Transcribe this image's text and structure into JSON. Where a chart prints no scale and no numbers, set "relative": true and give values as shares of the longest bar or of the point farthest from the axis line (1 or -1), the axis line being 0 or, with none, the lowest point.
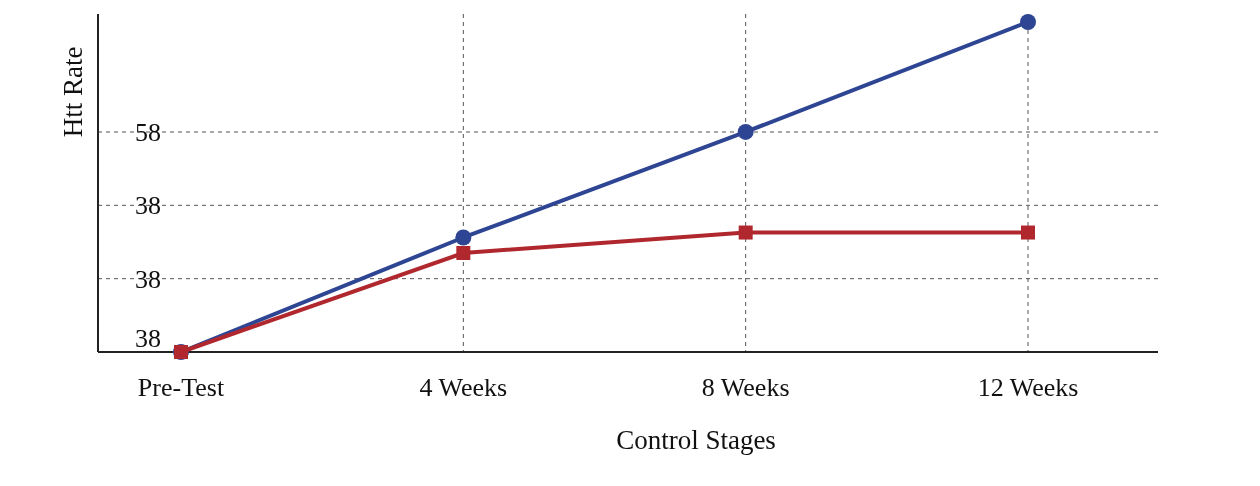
{
  "chart_data": {
    "type": "line",
    "xlabel": "Control Stages",
    "ylabel": "Htt Rate",
    "relative": true,
    "categories": [
      "Pre-Test",
      "4 Weeks",
      "8 Weeks",
      "12 Weeks"
    ],
    "series": [
      {
        "color": "#2e4593",
        "values": [
          0,
          0.347,
          0.667,
          1
        ],
        "marker": "circle"
      },
      {
        "color": "#b0282e",
        "values": [
          0,
          0.3,
          0.362,
          0.362
        ],
        "marker": "square"
      }
    ],
    "annotations": [
      "38",
      "38",
      "38",
      "58"
    ],
    "grid": true,
    "line_style": "solid"
  }
}
